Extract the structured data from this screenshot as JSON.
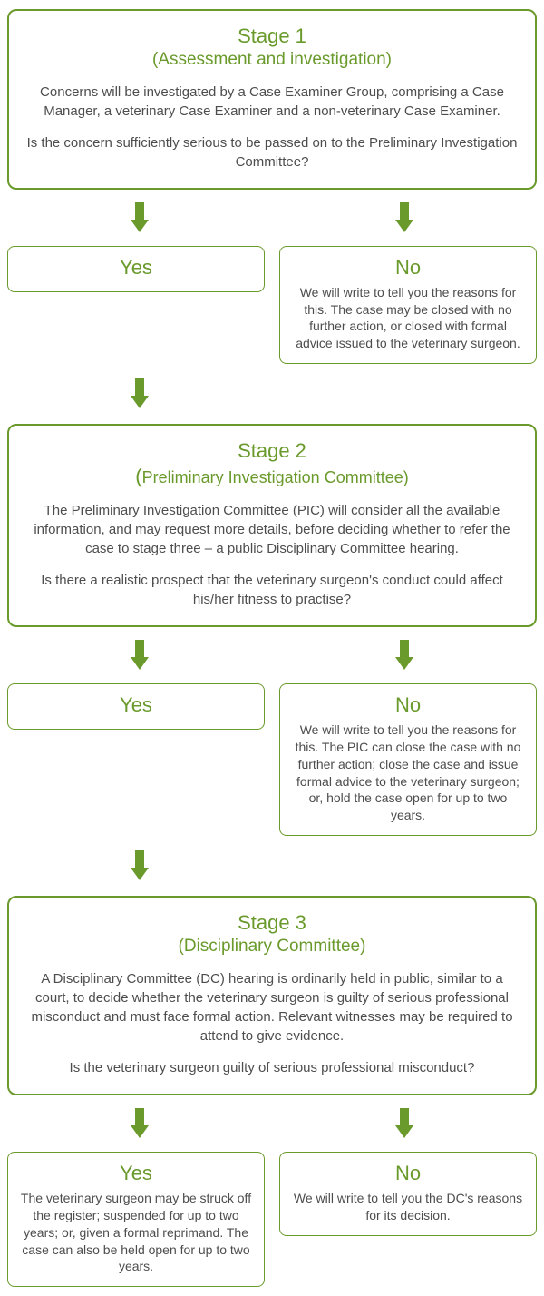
{
  "colors": {
    "green": "#6a9a2c",
    "text": "#4d4d4d",
    "border_light": "#6a9a2c"
  },
  "stage1": {
    "title": "Stage 1",
    "subtitle": "(Assessment and investigation)",
    "para1": "Concerns will be investigated by a Case Examiner Group, comprising a Case Manager, a veterinary Case Examiner and a non-veterinary Case Examiner.",
    "para2": "Is the concern sufficiently serious to be passed on to the Preliminary Investigation Committee?",
    "yes": {
      "label": "Yes"
    },
    "no": {
      "label": "No",
      "body": "We will write to tell you the reasons for this. The case may be closed with no further action, or closed with formal advice issued to the veterinary surgeon."
    }
  },
  "stage2": {
    "title": "Stage 2",
    "subtitle_open": "(",
    "subtitle_text": "Preliminary Investigation Committee)",
    "para1": "The Preliminary Investigation Committee (PIC) will consider all the available information, and may request more details, before deciding whether to refer the case to stage three – a public Disciplinary Committee hearing.",
    "para2": "Is there a realistic prospect that the veterinary surgeon's conduct could affect his/her fitness to practise?",
    "yes": {
      "label": "Yes"
    },
    "no": {
      "label": "No",
      "body": "We will write to tell you the reasons for this. The PIC can close the case with no further action; close the case and issue formal advice to the veterinary surgeon; or, hold the case open for up to two years."
    }
  },
  "stage3": {
    "title": "Stage 3",
    "subtitle": "(Disciplinary Committee)",
    "para1": "A Disciplinary Committee (DC) hearing is ordinarily held in public, similar to a court, to decide whether the veterinary surgeon is guilty of serious professional misconduct and must face formal action. Relevant witnesses may be required to attend to give evidence.",
    "para2": "Is the veterinary surgeon guilty of serious professional misconduct?",
    "yes": {
      "label": "Yes",
      "body": "The veterinary surgeon may be struck off the register; suspended for up to two years; or, given a formal reprimand. The case can also be held open for up to two years."
    },
    "no": {
      "label": "No",
      "body": "We will write to tell you the DC's reasons for its decision."
    }
  }
}
